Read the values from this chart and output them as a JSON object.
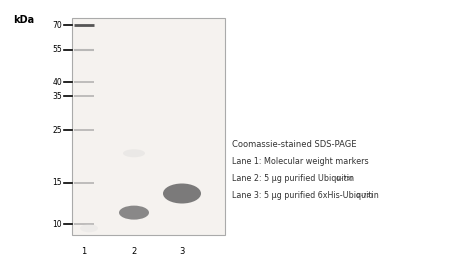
{
  "title": "kDa",
  "mw_labels": [
    "70",
    "55",
    "40",
    "35",
    "25",
    "15",
    "10"
  ],
  "mw_positions": [
    70,
    55,
    40,
    35,
    25,
    15,
    10
  ],
  "lane_labels": [
    "1",
    "2",
    "3"
  ],
  "gel_bg_color": "#f5f2ef",
  "gel_border_color": "#aaaaaa",
  "band_color_lane2": "#7a7a7a",
  "band_color_lane3": "#6a6a6a",
  "marker_band_color": "#999999",
  "marker_top_band_color": "#555555",
  "annotation_title": "Coomassie-stained SDS-PAGE",
  "annotation_line1": "Lane 1: Molecular weight markers",
  "annotation_line2_pre": "Lane 2: 5 μg purified Ubiquitin",
  "annotation_line2_sub": "(1-75)",
  "annotation_line3_pre": "Lane 3: 5 μg purified 6xHis-Ubiquitin",
  "annotation_line3_sub": "(1-75)",
  "text_color": "#333333",
  "background_color": "#ffffff",
  "log_mw_min": 9.0,
  "log_mw_max": 75.0
}
